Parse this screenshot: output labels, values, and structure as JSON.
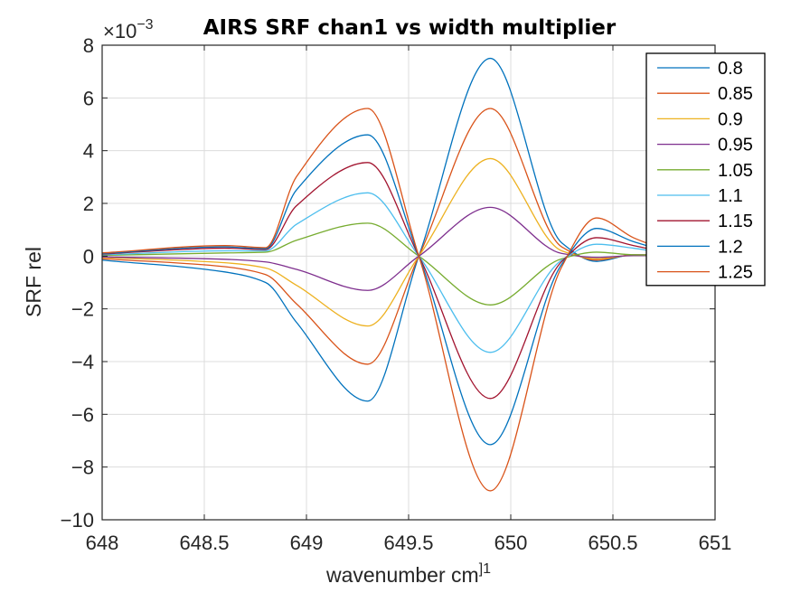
{
  "chart_data": {
    "type": "line",
    "title": "AIRS SRF chan1 vs width multiplier",
    "xlabel": "wavenumber cm",
    "xlabel_sup": "]1",
    "ylabel": "SRF rel",
    "y_exponent_base": "×10",
    "y_exponent_power": "−3",
    "xlim": [
      648,
      651
    ],
    "ylim": [
      -10,
      8
    ],
    "xticks": [
      648,
      648.5,
      649,
      649.5,
      650,
      650.5,
      651
    ],
    "xtick_labels": [
      "648",
      "648.5",
      "649",
      "649.5",
      "650",
      "650.5",
      "651"
    ],
    "yticks": [
      8,
      6,
      4,
      2,
      0,
      -2,
      -4,
      -6,
      -8,
      -10
    ],
    "ytick_labels": [
      "8",
      "6",
      "4",
      "2",
      "0",
      "−2",
      "−4",
      "−6",
      "−8",
      "−10"
    ],
    "grid": true,
    "legend_position": "top-right",
    "x": [
      648.0,
      648.6,
      648.8,
      648.95,
      649.3,
      649.55,
      649.9,
      650.25,
      650.42,
      650.6,
      650.8
    ],
    "series": [
      {
        "name": "0.8",
        "color": "#0072BD",
        "values": [
          -0.15,
          -0.6,
          -1.0,
          -2.5,
          -5.5,
          0,
          7.5,
          0.5,
          -0.2,
          0.05,
          0.05
        ]
      },
      {
        "name": "0.85",
        "color": "#D95319",
        "values": [
          -0.1,
          -0.4,
          -0.7,
          -1.8,
          -4.1,
          0,
          5.6,
          0.35,
          -0.15,
          0.05,
          0.05
        ]
      },
      {
        "name": "0.9",
        "color": "#EDB120",
        "values": [
          -0.05,
          -0.25,
          -0.45,
          -1.1,
          -2.65,
          0,
          3.7,
          0.2,
          -0.1,
          0.03,
          0.03
        ]
      },
      {
        "name": "0.95",
        "color": "#7E2F8E",
        "values": [
          -0.03,
          -0.12,
          -0.22,
          -0.5,
          -1.3,
          0,
          1.85,
          0.1,
          -0.05,
          0.02,
          0.02
        ]
      },
      {
        "name": "1.05",
        "color": "#77AC30",
        "values": [
          0.03,
          0.12,
          0.15,
          0.6,
          1.25,
          0,
          -1.85,
          -0.1,
          0.15,
          0.05,
          0.03
        ]
      },
      {
        "name": "1.1",
        "color": "#4DBEEE",
        "values": [
          0.05,
          0.2,
          0.2,
          1.2,
          2.4,
          0,
          -3.65,
          -0.15,
          0.45,
          0.3,
          0.05
        ]
      },
      {
        "name": "1.15",
        "color": "#A2142F",
        "values": [
          0.08,
          0.3,
          0.25,
          1.9,
          3.55,
          0,
          -5.4,
          -0.2,
          0.7,
          0.4,
          0.08
        ]
      },
      {
        "name": "1.2",
        "color": "#0072BD",
        "values": [
          0.1,
          0.35,
          0.28,
          2.5,
          4.6,
          0,
          -7.15,
          -0.3,
          1.05,
          0.55,
          0.1
        ]
      },
      {
        "name": "1.25",
        "color": "#D95319",
        "values": [
          0.12,
          0.4,
          0.32,
          3.0,
          5.6,
          0,
          -8.9,
          -0.4,
          1.45,
          0.7,
          0.12
        ]
      }
    ]
  }
}
